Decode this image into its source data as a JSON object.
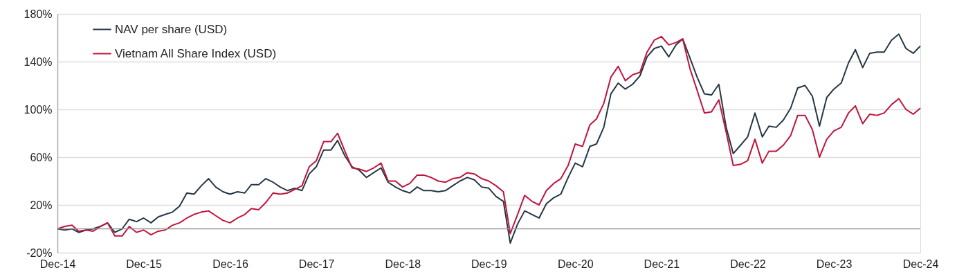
{
  "chart_data": {
    "type": "line",
    "x": [
      "2014-12",
      "2015-01",
      "2015-02",
      "2015-03",
      "2015-04",
      "2015-05",
      "2015-06",
      "2015-07",
      "2015-08",
      "2015-09",
      "2015-10",
      "2015-11",
      "2015-12",
      "2016-01",
      "2016-02",
      "2016-03",
      "2016-04",
      "2016-05",
      "2016-06",
      "2016-07",
      "2016-08",
      "2016-09",
      "2016-10",
      "2016-11",
      "2016-12",
      "2017-01",
      "2017-02",
      "2017-03",
      "2017-04",
      "2017-05",
      "2017-06",
      "2017-07",
      "2017-08",
      "2017-09",
      "2017-10",
      "2017-11",
      "2017-12",
      "2018-01",
      "2018-02",
      "2018-03",
      "2018-04",
      "2018-05",
      "2018-06",
      "2018-07",
      "2018-08",
      "2018-09",
      "2018-10",
      "2018-11",
      "2018-12",
      "2019-01",
      "2019-02",
      "2019-03",
      "2019-04",
      "2019-05",
      "2019-06",
      "2019-07",
      "2019-08",
      "2019-09",
      "2019-10",
      "2019-11",
      "2019-12",
      "2020-01",
      "2020-02",
      "2020-03",
      "2020-04",
      "2020-05",
      "2020-06",
      "2020-07",
      "2020-08",
      "2020-09",
      "2020-10",
      "2020-11",
      "2020-12",
      "2021-01",
      "2021-02",
      "2021-03",
      "2021-04",
      "2021-05",
      "2021-06",
      "2021-07",
      "2021-08",
      "2021-09",
      "2021-10",
      "2021-11",
      "2021-12",
      "2022-01",
      "2022-02",
      "2022-03",
      "2022-04",
      "2022-05",
      "2022-06",
      "2022-07",
      "2022-08",
      "2022-09",
      "2022-10",
      "2022-11",
      "2022-12",
      "2023-01",
      "2023-02",
      "2023-03",
      "2023-04",
      "2023-05",
      "2023-06",
      "2023-07",
      "2023-08",
      "2023-09",
      "2023-10",
      "2023-11",
      "2023-12",
      "2024-01",
      "2024-02",
      "2024-03",
      "2024-04",
      "2024-05",
      "2024-06",
      "2024-07",
      "2024-08",
      "2024-09",
      "2024-10",
      "2024-11",
      "2024-12"
    ],
    "series": [
      {
        "name": "NAV per share (USD)",
        "color": "#243746",
        "values": [
          0,
          -1,
          0,
          -3,
          -1,
          0,
          2,
          5,
          -3,
          0,
          8,
          6,
          9,
          5,
          10,
          12,
          14,
          19,
          30,
          29,
          36,
          42,
          35,
          31,
          29,
          31,
          30,
          37,
          37,
          42,
          39,
          35,
          32,
          34,
          32,
          46,
          52,
          66,
          66,
          74,
          61,
          52,
          49,
          43,
          47,
          51,
          39,
          35,
          32,
          30,
          35,
          32,
          32,
          31,
          32,
          36,
          40,
          43,
          41,
          35,
          34,
          27,
          23,
          -12,
          4,
          15,
          12,
          9,
          21,
          26,
          29,
          43,
          55,
          52,
          69,
          71,
          85,
          113,
          122,
          117,
          121,
          128,
          144,
          151,
          153,
          144,
          154,
          159,
          143,
          127,
          113,
          112,
          121,
          85,
          63,
          70,
          77,
          97,
          77,
          86,
          85,
          91,
          101,
          118,
          120,
          111,
          86,
          110,
          117,
          122,
          139,
          150,
          135,
          147,
          148,
          148,
          158,
          163,
          151,
          147,
          153
        ]
      },
      {
        "name": "Vietnam All Share Index (USD)",
        "color": "#c0143c",
        "values": [
          0,
          2,
          3,
          -2,
          -1,
          -2,
          2,
          5,
          -6,
          -6,
          2,
          -3,
          -1,
          -5,
          -2,
          -1,
          3,
          5,
          9,
          12,
          14,
          15,
          11,
          7,
          5,
          9,
          12,
          17,
          16,
          22,
          30,
          29,
          30,
          33,
          36,
          52,
          57,
          73,
          73,
          80,
          65,
          51,
          50,
          48,
          51,
          55,
          40,
          40,
          35,
          38,
          45,
          45,
          43,
          40,
          39,
          42,
          43,
          47,
          46,
          42,
          40,
          36,
          31,
          -4,
          12,
          28,
          23,
          20,
          32,
          38,
          42,
          53,
          71,
          69,
          87,
          92,
          105,
          127,
          136,
          124,
          129,
          131,
          148,
          158,
          161,
          154,
          156,
          159,
          134,
          116,
          97,
          98,
          108,
          81,
          53,
          54,
          57,
          75,
          55,
          65,
          65,
          70,
          78,
          95,
          95,
          83,
          60,
          75,
          82,
          85,
          97,
          103,
          88,
          96,
          95,
          97,
          104,
          109,
          100,
          96,
          101
        ]
      }
    ],
    "xlim": [
      "2014-12",
      "2024-12"
    ],
    "xticks": [
      {
        "value": "2014-12",
        "label": "Dec-14"
      },
      {
        "value": "2015-12",
        "label": "Dec-15"
      },
      {
        "value": "2016-12",
        "label": "Dec-16"
      },
      {
        "value": "2017-12",
        "label": "Dec-17"
      },
      {
        "value": "2018-12",
        "label": "Dec-18"
      },
      {
        "value": "2019-12",
        "label": "Dec-19"
      },
      {
        "value": "2020-12",
        "label": "Dec-20"
      },
      {
        "value": "2021-12",
        "label": "Dec-21"
      },
      {
        "value": "2022-12",
        "label": "Dec-22"
      },
      {
        "value": "2023-12",
        "label": "Dec-23"
      },
      {
        "value": "2024-12",
        "label": "Dec-24"
      }
    ],
    "ylim": [
      -20,
      180
    ],
    "yticks": [
      {
        "value": -20,
        "label": "-20%"
      },
      {
        "value": 20,
        "label": "20%"
      },
      {
        "value": 60,
        "label": "60%"
      },
      {
        "value": 100,
        "label": "100%"
      },
      {
        "value": 140,
        "label": "140%"
      },
      {
        "value": 180,
        "label": "180%"
      }
    ],
    "ref_lines": [
      {
        "axis": "y",
        "value": 0,
        "color": "#999999"
      }
    ],
    "grid": "y",
    "legend": "top left",
    "marker": "none",
    "line_style": "solid"
  }
}
